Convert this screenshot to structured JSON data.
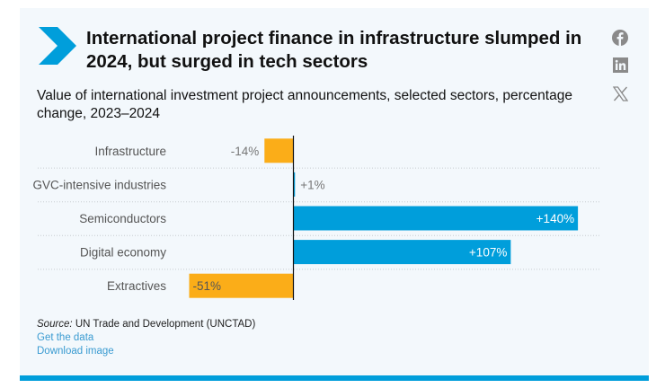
{
  "header": {
    "title": "International project finance in infrastructure slumped in 2024, but surged in tech sectors",
    "subtitle": "Value of international investment project announcements, selected sectors, percentage change, 2023–2024"
  },
  "social": [
    {
      "name": "facebook",
      "icon": "facebook-icon"
    },
    {
      "name": "linkedin",
      "icon": "linkedin-icon"
    },
    {
      "name": "x",
      "icon": "x-icon"
    }
  ],
  "colors": {
    "accent": "#009edb",
    "negative": "#fbad18",
    "positive": "#009edb",
    "panel": "#f3f8fc"
  },
  "chart_data": {
    "type": "bar",
    "orientation": "horizontal",
    "title": "Value of international investment project announcements, selected sectors, percentage change, 2023–2024",
    "xlabel": "",
    "ylabel": "",
    "unit": "%",
    "categories": [
      "Infrastructure",
      "GVC-intensive industries",
      "Semiconductors",
      "Digital economy",
      "Extractives"
    ],
    "values": [
      -14,
      1,
      140,
      107,
      -51
    ],
    "value_labels": [
      "-14%",
      "+1%",
      "+140%",
      "+107%",
      "-51%"
    ],
    "xlim": [
      -51,
      150
    ],
    "grid": "dotted row separators",
    "legend": "none"
  },
  "footer": {
    "source_label": "Source:",
    "source_text": " UN Trade and Development (UNCTAD)",
    "get_data": "Get the data",
    "download": "Download image"
  }
}
